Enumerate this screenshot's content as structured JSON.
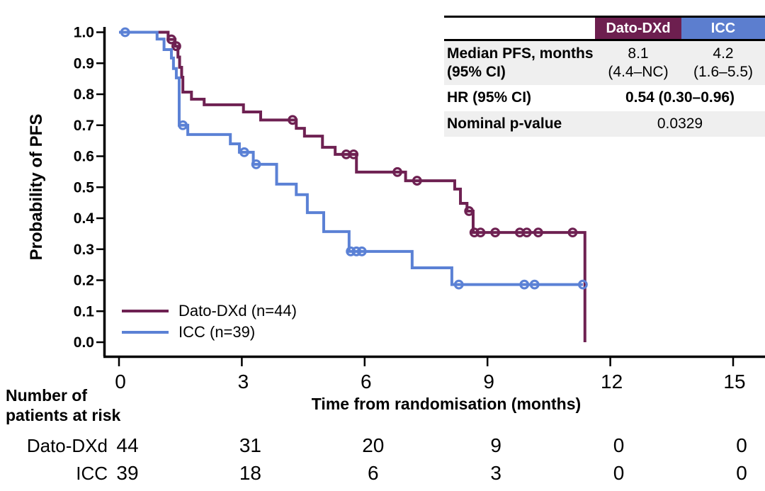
{
  "chart_data": {
    "type": "line",
    "subtype": "kaplan-meier-step",
    "title": "",
    "xlabel": "Time from randomisation (months)",
    "ylabel": "Probability of PFS",
    "xlim": [
      0,
      15
    ],
    "ylim": [
      0.0,
      1.0
    ],
    "xticks": [
      0,
      3,
      6,
      9,
      12,
      15
    ],
    "yticks": [
      0.0,
      0.1,
      0.2,
      0.3,
      0.4,
      0.5,
      0.6,
      0.7,
      0.8,
      0.9,
      1.0
    ],
    "grid": false,
    "legend_position": "lower-left",
    "series": [
      {
        "name": "Dato-DXd (n=44)",
        "color": "#6e2152",
        "steps": [
          [
            0,
            1.0
          ],
          [
            1.2,
            0.977
          ],
          [
            1.37,
            0.955
          ],
          [
            1.44,
            0.92
          ],
          [
            1.48,
            0.887
          ],
          [
            1.53,
            0.855
          ],
          [
            1.56,
            0.807
          ],
          [
            1.77,
            0.784
          ],
          [
            2.08,
            0.766
          ],
          [
            3.04,
            0.743
          ],
          [
            3.46,
            0.717
          ],
          [
            4.33,
            0.69
          ],
          [
            4.53,
            0.665
          ],
          [
            4.97,
            0.629
          ],
          [
            5.28,
            0.606
          ],
          [
            5.8,
            0.549
          ],
          [
            7.0,
            0.521
          ],
          [
            8.2,
            0.494
          ],
          [
            8.34,
            0.448
          ],
          [
            8.5,
            0.423
          ],
          [
            8.65,
            0.354
          ],
          [
            11.38,
            0.0
          ]
        ],
        "end": 11.38,
        "censor_marks": [
          [
            1.28,
            0.977
          ],
          [
            1.4,
            0.955
          ],
          [
            4.24,
            0.717
          ],
          [
            5.55,
            0.606
          ],
          [
            5.73,
            0.606
          ],
          [
            6.8,
            0.549
          ],
          [
            7.28,
            0.521
          ],
          [
            8.55,
            0.423
          ],
          [
            8.68,
            0.354
          ],
          [
            8.83,
            0.354
          ],
          [
            9.19,
            0.354
          ],
          [
            9.79,
            0.354
          ],
          [
            9.96,
            0.354
          ],
          [
            10.24,
            0.354
          ],
          [
            11.08,
            0.354
          ]
        ]
      },
      {
        "name": "ICC (n=39)",
        "color": "#5b81d5",
        "steps": [
          [
            0,
            1.0
          ],
          [
            0.93,
            0.978
          ],
          [
            1.1,
            0.944
          ],
          [
            1.28,
            0.917
          ],
          [
            1.33,
            0.883
          ],
          [
            1.4,
            0.853
          ],
          [
            1.47,
            0.7
          ],
          [
            1.68,
            0.67
          ],
          [
            2.72,
            0.64
          ],
          [
            2.94,
            0.613
          ],
          [
            3.28,
            0.574
          ],
          [
            3.85,
            0.51
          ],
          [
            4.33,
            0.476
          ],
          [
            4.6,
            0.418
          ],
          [
            5.0,
            0.357
          ],
          [
            5.62,
            0.293
          ],
          [
            7.16,
            0.24
          ],
          [
            8.13,
            0.186
          ]
        ],
        "end": 11.33,
        "censor_marks": [
          [
            0.15,
            1.0
          ],
          [
            1.56,
            0.7
          ],
          [
            3.06,
            0.613
          ],
          [
            3.35,
            0.574
          ],
          [
            5.66,
            0.293
          ],
          [
            5.8,
            0.293
          ],
          [
            5.93,
            0.293
          ],
          [
            8.3,
            0.186
          ],
          [
            9.9,
            0.186
          ],
          [
            10.15,
            0.186
          ],
          [
            11.33,
            0.186
          ]
        ]
      }
    ]
  },
  "axes": {
    "y_title": "Probability of PFS",
    "x_title": "Time from randomisation (months)"
  },
  "legend": {
    "items": [
      {
        "label": "Dato-DXd (n=44)",
        "color": "#6e2152"
      },
      {
        "label": "ICC (n=39)",
        "color": "#5b81d5"
      }
    ]
  },
  "stats_table": {
    "header": {
      "dato": "Dato-DXd",
      "icc": "ICC"
    },
    "header_colors": {
      "dato": "#6d1f4f",
      "icc": "#5c7ecf"
    },
    "row_median": {
      "label_line1": "Median PFS, months",
      "label_line2": "(95% CI)",
      "dato_line1": "8.1",
      "dato_line2": "(4.4–NC)",
      "icc_line1": "4.2",
      "icc_line2": "(1.6–5.5)"
    },
    "row_hr": {
      "label": "HR (95% CI)",
      "value": "0.54 (0.30–0.96)"
    },
    "row_p": {
      "label": "Nominal p-value",
      "value": "0.0329"
    }
  },
  "risk_table": {
    "header_line1": "Number of",
    "header_line2": "patients at risk",
    "timepoints": [
      0,
      3,
      6,
      9,
      12,
      15
    ],
    "rows": [
      {
        "label": "Dato-DXd",
        "values": [
          "44",
          "31",
          "20",
          "9",
          "0",
          "0"
        ]
      },
      {
        "label": "ICC",
        "values": [
          "39",
          "18",
          "6",
          "3",
          "0",
          "0"
        ]
      }
    ]
  },
  "colors": {
    "dato_curve": "#6e2152",
    "icc_curve": "#5b81d5",
    "axis": "#000000",
    "row_shade": "#efefef"
  }
}
